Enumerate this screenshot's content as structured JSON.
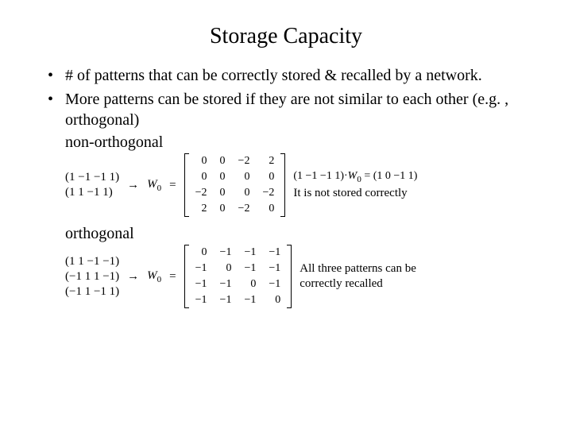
{
  "title": "Storage Capacity",
  "bullets": {
    "b1": "# of patterns that can be correctly stored & recalled by a network.",
    "b2": "More patterns can be stored if they are not similar to each other (e.g. , orthogonal)"
  },
  "labels": {
    "nonortho": "non-orthogonal",
    "ortho": "orthogonal"
  },
  "nonortho": {
    "p1": "(1   −1   −1   1)",
    "p2": "(1   1   −1   1)",
    "arrow": "→",
    "W": "W",
    "Wsub": "0",
    "eq": "=",
    "matrix": [
      [
        "0",
        "0",
        "−2",
        "2"
      ],
      [
        "0",
        "0",
        "0",
        "0"
      ],
      [
        "−2",
        "0",
        "0",
        "−2"
      ],
      [
        "2",
        "0",
        "−2",
        "0"
      ]
    ],
    "calc": "(1 −1 −1 1)·",
    "calcW": "W",
    "calcWsub": "0",
    "calcRes": " = (1  0  −1 1)",
    "note": "It is not stored correctly"
  },
  "ortho": {
    "p1": "(1   1   −1   −1)",
    "p2": "(−1   1   1   −1)",
    "p3": "(−1   1   −1   1)",
    "arrow": "→",
    "W": "W",
    "Wsub": "0",
    "eq": "=",
    "matrix": [
      [
        "0",
        "−1",
        "−1",
        "−1"
      ],
      [
        "−1",
        "0",
        "−1",
        "−1"
      ],
      [
        "−1",
        "−1",
        "0",
        "−1"
      ],
      [
        "−1",
        "−1",
        "−1",
        "0"
      ]
    ],
    "note1": "All three patterns can be",
    "note2": "correctly recalled"
  }
}
